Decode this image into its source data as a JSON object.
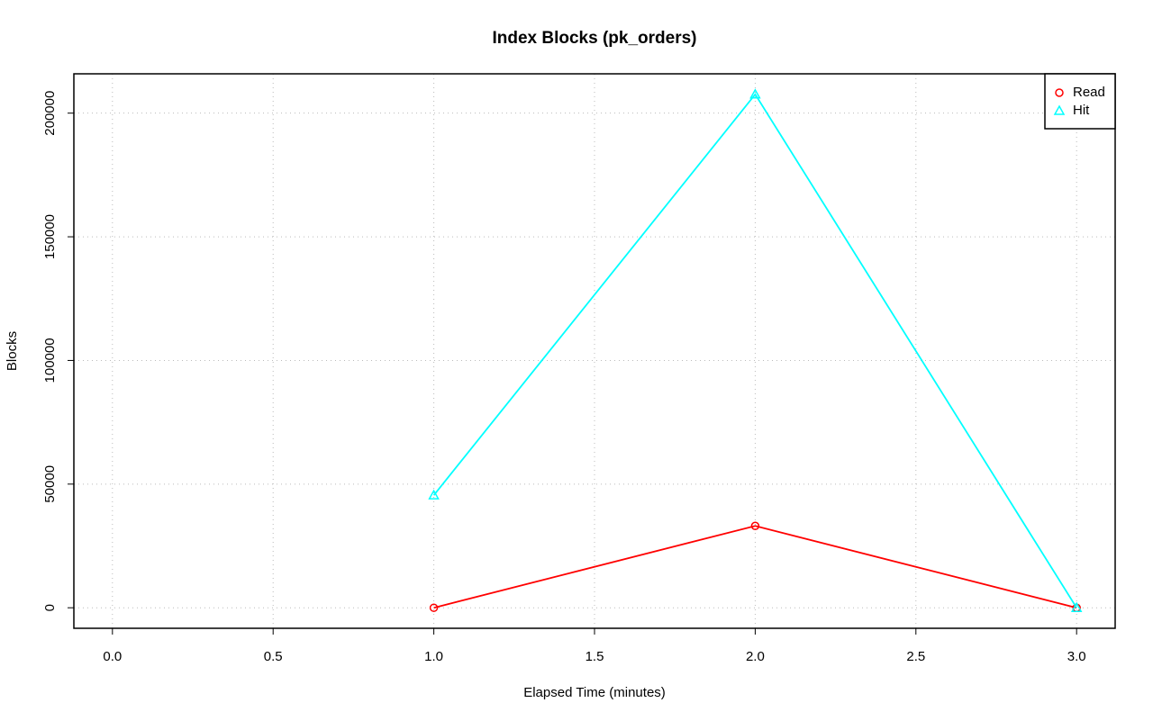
{
  "chart_data": {
    "type": "line",
    "title": "Index Blocks (pk_orders)",
    "x_label": "Elapsed Time (minutes)",
    "y_label": "Blocks",
    "x": [
      1,
      2,
      3
    ],
    "series": [
      {
        "name": "Read",
        "color": "#ff0000",
        "marker": "circle",
        "values": [
          0,
          33100,
          0
        ]
      },
      {
        "name": "Hit",
        "color": "#00ffff",
        "marker": "triangle",
        "values": [
          45500,
          207600,
          0
        ]
      }
    ],
    "xlim": [
      -0.12,
      3.12
    ],
    "xticks": [
      {
        "value": 0,
        "label": "0.0"
      },
      {
        "value": 0.5,
        "label": "0.5"
      },
      {
        "value": 1,
        "label": "1.0"
      },
      {
        "value": 1.5,
        "label": "1.5"
      },
      {
        "value": 2,
        "label": "2.0"
      },
      {
        "value": 2.5,
        "label": "2.5"
      },
      {
        "value": 3,
        "label": "3.0"
      }
    ],
    "ylim": [
      -8300,
      215900
    ],
    "yticks": [
      0,
      50000,
      100000,
      150000,
      200000
    ],
    "grid": true,
    "legend": "top-right"
  }
}
